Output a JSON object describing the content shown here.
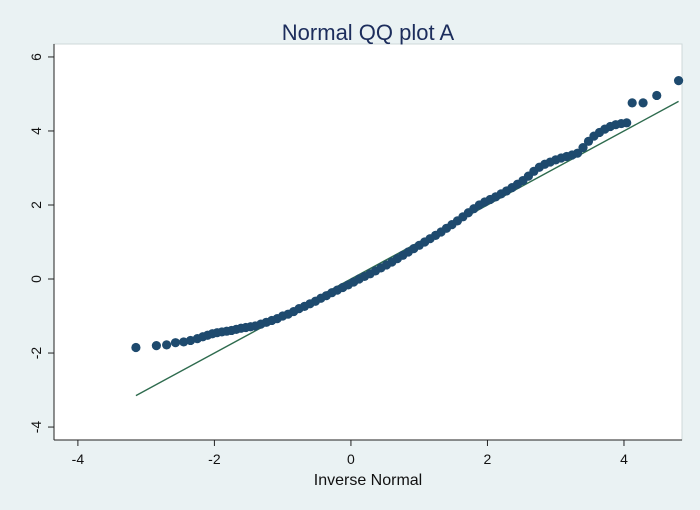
{
  "chart_data": {
    "type": "scatter",
    "title": "Normal QQ plot A",
    "xlabel": "Inverse Normal",
    "ylabel": "",
    "xlim": [
      -4.35,
      4.85
    ],
    "ylim": [
      -4.35,
      6.35
    ],
    "xticks": [
      -4,
      -2,
      0,
      2,
      4
    ],
    "yticks": [
      -4,
      -2,
      0,
      2,
      4,
      6
    ],
    "xtick_labels": [
      "-4",
      "-2",
      "0",
      "2",
      "4"
    ],
    "ytick_labels": [
      "-4",
      "-2",
      "0",
      "2",
      "4",
      "6"
    ],
    "grid": false,
    "legend": "none",
    "colors": {
      "background": "#eaf2f3",
      "plot_area": "#ffffff",
      "marker": "#1e4a6e",
      "reference_line": "#2e6b4e",
      "title": "#1c2d5c"
    },
    "series": [
      {
        "type": "scatter",
        "x": [
          -3.15,
          -2.85,
          -2.7,
          -2.57,
          -2.45,
          -2.35,
          -2.25,
          -2.17,
          -2.1,
          -2.03,
          -1.96,
          -1.89,
          -1.82,
          -1.75,
          -1.68,
          -1.61,
          -1.54,
          -1.47,
          -1.4,
          -1.32,
          -1.24,
          -1.16,
          -1.08,
          -1.0,
          -0.92,
          -0.84,
          -0.76,
          -0.68,
          -0.6,
          -0.52,
          -0.44,
          -0.36,
          -0.28,
          -0.2,
          -0.12,
          -0.04,
          0.04,
          0.12,
          0.2,
          0.28,
          0.36,
          0.44,
          0.52,
          0.6,
          0.68,
          0.76,
          0.84,
          0.92,
          1.0,
          1.08,
          1.16,
          1.24,
          1.32,
          1.4,
          1.48,
          1.56,
          1.64,
          1.72,
          1.8,
          1.88,
          1.96,
          2.04,
          2.12,
          2.2,
          2.28,
          2.36,
          2.44,
          2.52,
          2.6,
          2.68,
          2.76,
          2.84,
          2.92,
          3.0,
          3.08,
          3.16,
          3.24,
          3.32,
          3.4,
          3.48,
          3.56,
          3.64,
          3.72,
          3.8,
          3.88,
          3.96,
          4.04,
          4.12,
          4.28,
          4.48,
          4.8
        ],
        "y": [
          -1.85,
          -1.8,
          -1.78,
          -1.72,
          -1.7,
          -1.66,
          -1.61,
          -1.56,
          -1.52,
          -1.48,
          -1.45,
          -1.43,
          -1.41,
          -1.39,
          -1.36,
          -1.33,
          -1.31,
          -1.29,
          -1.27,
          -1.22,
          -1.17,
          -1.12,
          -1.07,
          -1.0,
          -0.95,
          -0.88,
          -0.8,
          -0.74,
          -0.67,
          -0.6,
          -0.52,
          -0.45,
          -0.37,
          -0.3,
          -0.23,
          -0.16,
          -0.08,
          0.0,
          0.07,
          0.14,
          0.22,
          0.3,
          0.38,
          0.46,
          0.55,
          0.64,
          0.73,
          0.82,
          0.91,
          1.0,
          1.09,
          1.18,
          1.27,
          1.37,
          1.47,
          1.57,
          1.68,
          1.79,
          1.9,
          2.0,
          2.08,
          2.15,
          2.22,
          2.3,
          2.38,
          2.47,
          2.56,
          2.66,
          2.78,
          2.91,
          3.02,
          3.1,
          3.16,
          3.22,
          3.27,
          3.31,
          3.35,
          3.4,
          3.55,
          3.72,
          3.86,
          3.96,
          4.05,
          4.12,
          4.17,
          4.2,
          4.22,
          4.76,
          4.76,
          4.96,
          5.36
        ]
      },
      {
        "type": "line",
        "x": [
          -3.15,
          4.8
        ],
        "y": [
          -3.15,
          4.8
        ]
      }
    ]
  }
}
